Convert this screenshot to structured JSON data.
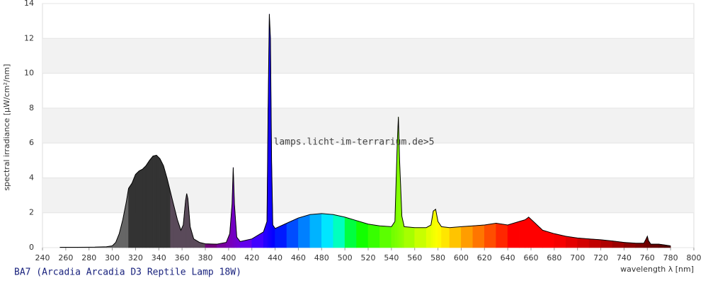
{
  "chart_data": {
    "type": "spectrum",
    "title": "BA7 (Arcadia Arcadia D3 Reptile Lamp 18W)",
    "watermark": "lamps.licht-im-terrarium.de>5",
    "x_label": "wavelength λ [nm]",
    "y_label": "spectral irradiance [µW/cm²/nm]",
    "xlim": [
      240,
      800
    ],
    "xticks": [
      240,
      260,
      280,
      300,
      320,
      340,
      360,
      380,
      400,
      420,
      440,
      460,
      480,
      500,
      520,
      540,
      560,
      580,
      600,
      620,
      640,
      660,
      680,
      700,
      720,
      740,
      760,
      780,
      800
    ],
    "ylim": [
      0,
      14
    ],
    "yticks": [
      0,
      2,
      4,
      6,
      8,
      10,
      12,
      14
    ],
    "grid": "banded",
    "x": [
      255,
      270,
      285,
      295,
      300,
      303,
      306,
      309,
      312,
      314,
      317,
      320,
      323,
      326,
      329,
      332,
      335,
      338,
      341,
      344,
      347,
      350,
      353,
      356,
      359,
      361,
      363,
      364,
      365,
      367,
      370,
      375,
      380,
      390,
      398,
      401,
      403,
      404,
      405,
      407,
      410,
      420,
      430,
      433,
      434,
      435,
      436,
      437,
      438,
      440,
      450,
      460,
      470,
      480,
      490,
      500,
      510,
      520,
      530,
      540,
      543,
      545,
      546,
      547,
      549,
      551,
      560,
      570,
      574,
      576,
      578,
      580,
      583,
      590,
      600,
      610,
      620,
      630,
      640,
      650,
      655,
      658,
      662,
      670,
      680,
      690,
      700,
      710,
      720,
      730,
      740,
      750,
      757,
      759,
      760,
      761,
      763,
      770,
      775,
      780
    ],
    "series": [
      {
        "values": [
          0.02,
          0.02,
          0.03,
          0.05,
          0.1,
          0.3,
          0.8,
          1.6,
          2.6,
          3.4,
          3.7,
          4.2,
          4.4,
          4.5,
          4.7,
          5.0,
          5.25,
          5.3,
          5.1,
          4.7,
          4.0,
          3.2,
          2.4,
          1.6,
          1.0,
          1.3,
          2.7,
          3.1,
          2.8,
          1.2,
          0.5,
          0.3,
          0.22,
          0.2,
          0.3,
          0.8,
          2.5,
          4.6,
          2.5,
          0.6,
          0.35,
          0.5,
          0.9,
          1.5,
          8,
          13.4,
          12.0,
          5,
          1.3,
          1.1,
          1.4,
          1.7,
          1.9,
          1.95,
          1.9,
          1.75,
          1.55,
          1.35,
          1.25,
          1.2,
          1.5,
          6,
          7.5,
          5,
          1.8,
          1.2,
          1.15,
          1.15,
          1.3,
          2.1,
          2.2,
          1.5,
          1.2,
          1.15,
          1.2,
          1.25,
          1.3,
          1.4,
          1.3,
          1.5,
          1.6,
          1.75,
          1.5,
          1.0,
          0.8,
          0.65,
          0.55,
          0.5,
          0.45,
          0.38,
          0.3,
          0.25,
          0.25,
          0.5,
          0.65,
          0.4,
          0.2,
          0.2,
          0.15,
          0.1
        ]
      }
    ]
  }
}
